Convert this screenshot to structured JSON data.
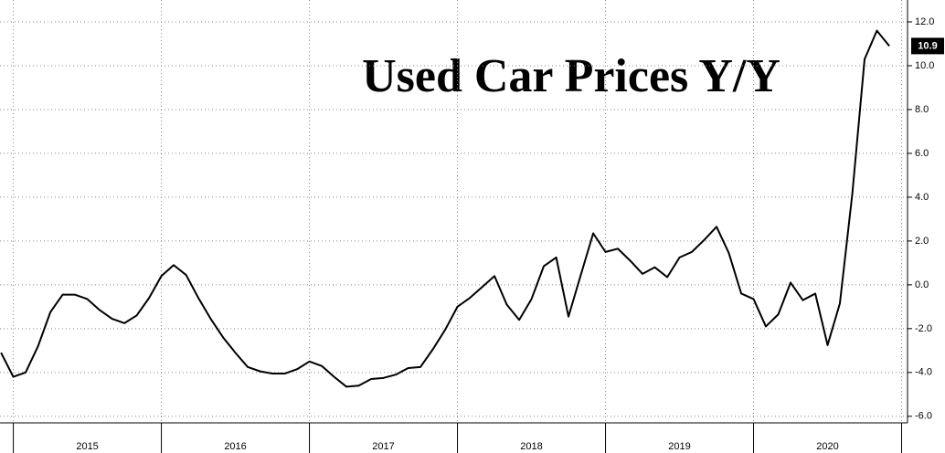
{
  "chart_data": {
    "type": "line",
    "title": "Used Car Prices Y/Y",
    "x": [
      2014.917,
      2015,
      2015.083,
      2015.167,
      2015.25,
      2015.333,
      2015.417,
      2015.5,
      2015.583,
      2015.667,
      2015.75,
      2015.833,
      2015.917,
      2016,
      2016.083,
      2016.167,
      2016.25,
      2016.333,
      2016.417,
      2016.5,
      2016.583,
      2016.667,
      2016.75,
      2016.833,
      2016.917,
      2017,
      2017.083,
      2017.167,
      2017.25,
      2017.333,
      2017.417,
      2017.5,
      2017.583,
      2017.667,
      2017.75,
      2017.833,
      2017.917,
      2018,
      2018.083,
      2018.167,
      2018.25,
      2018.333,
      2018.417,
      2018.5,
      2018.583,
      2018.667,
      2018.75,
      2018.833,
      2018.917,
      2019,
      2019.083,
      2019.167,
      2019.25,
      2019.333,
      2019.417,
      2019.5,
      2019.583,
      2019.667,
      2019.75,
      2019.833,
      2019.917,
      2020,
      2020.083,
      2020.167,
      2020.25,
      2020.333,
      2020.417,
      2020.5,
      2020.583,
      2020.667,
      2020.75,
      2020.833,
      2020.917
    ],
    "series": [
      {
        "color": "#000000",
        "values": [
          -3.1,
          -4.2,
          -4.0,
          -2.8,
          -1.25,
          -0.45,
          -0.45,
          -0.65,
          -1.15,
          -1.55,
          -1.75,
          -1.4,
          -0.6,
          0.4,
          0.9,
          0.45,
          -0.6,
          -1.55,
          -2.4,
          -3.1,
          -3.75,
          -3.95,
          -4.05,
          -4.05,
          -3.85,
          -3.5,
          -3.7,
          -4.2,
          -4.65,
          -4.6,
          -4.3,
          -4.25,
          -4.1,
          -3.8,
          -3.75,
          -2.95,
          -2.05,
          -1.0,
          -0.6,
          -0.1,
          0.4,
          -0.9,
          -1.6,
          -0.65,
          0.85,
          1.25,
          -1.45,
          0.45,
          2.35,
          1.5,
          1.65,
          1.1,
          0.5,
          0.8,
          0.35,
          1.25,
          1.5,
          2.05,
          2.65,
          1.45,
          -0.4,
          -0.65,
          -1.9,
          -1.35,
          0.1,
          -0.7,
          -0.4,
          -2.75,
          -0.85,
          4.15,
          10.3,
          11.6,
          10.9
        ]
      }
    ],
    "xlim": [
      2014.91,
      2021.04
    ],
    "xticks": [
      2015,
      2016,
      2017,
      2018,
      2019,
      2020,
      2021
    ],
    "year_labels": [
      {
        "value": 2015.5,
        "label": "2015"
      },
      {
        "value": 2016.5,
        "label": "2016"
      },
      {
        "value": 2017.5,
        "label": "2017"
      },
      {
        "value": 2018.5,
        "label": "2018"
      },
      {
        "value": 2019.5,
        "label": "2019"
      },
      {
        "value": 2020.5,
        "label": "2020"
      }
    ],
    "ylim": [
      -6.3,
      13.0
    ],
    "yticks": [
      {
        "value": -6,
        "label": "-6.0"
      },
      {
        "value": -4,
        "label": "-4.0"
      },
      {
        "value": -2,
        "label": "-2.0"
      },
      {
        "value": 0,
        "label": "0.0"
      },
      {
        "value": 2,
        "label": "2.0"
      },
      {
        "value": 4,
        "label": "4.0"
      },
      {
        "value": 6,
        "label": "6.0"
      },
      {
        "value": 8,
        "label": "8.0"
      },
      {
        "value": 10,
        "label": "10.0"
      },
      {
        "value": 12,
        "label": "12.0"
      }
    ],
    "grid": true
  }
}
